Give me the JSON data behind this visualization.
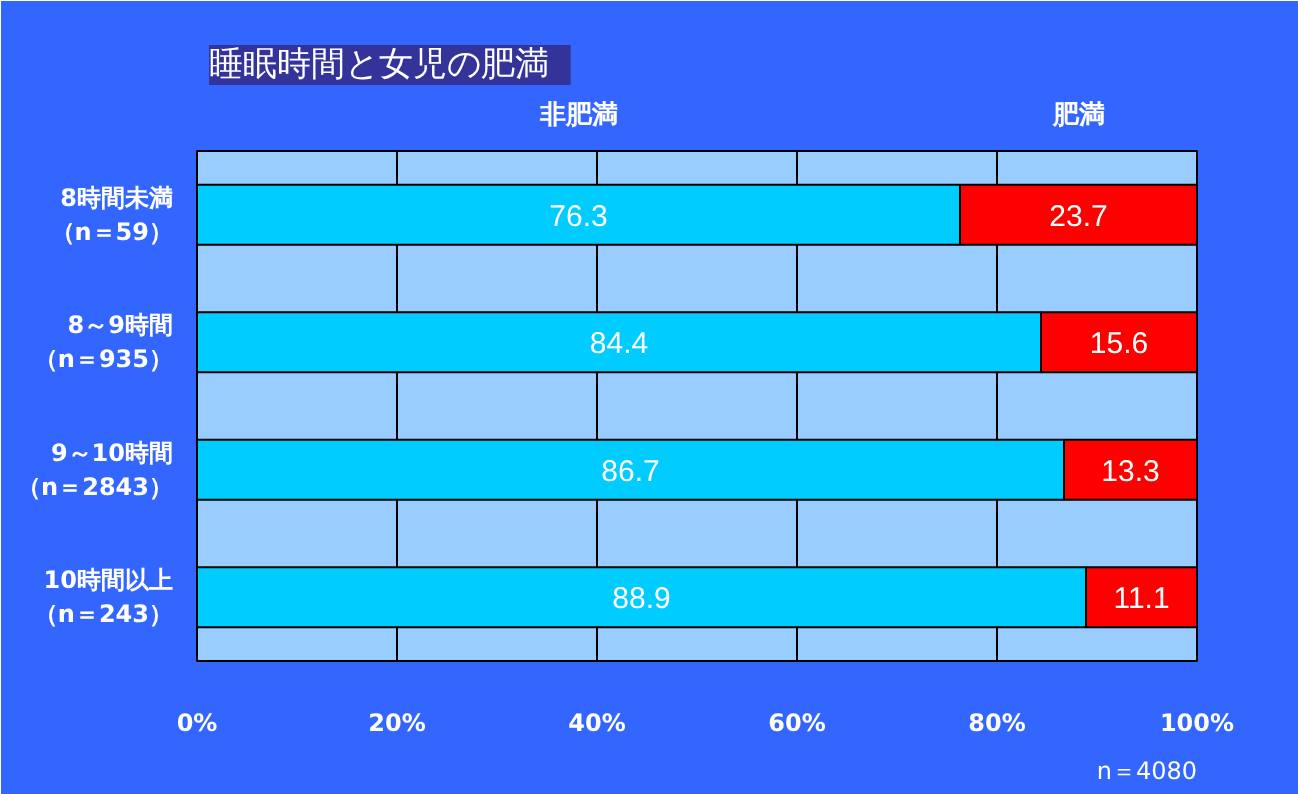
{
  "chart_data": {
    "type": "bar",
    "orientation": "horizontal",
    "stacked": true,
    "title": "睡眠時間と女児の肥満",
    "categories": [
      "8時間未満（n＝59）",
      "8～9時間（n＝935）",
      "9～10時間（n＝2843）",
      "10時間以上（n＝243）"
    ],
    "series": [
      {
        "name": "非肥満",
        "color": "#00ccff",
        "values": [
          76.3,
          84.4,
          86.7,
          88.9
        ]
      },
      {
        "name": "肥満",
        "color": "#ff0000",
        "values": [
          23.7,
          15.6,
          13.3,
          11.1
        ]
      }
    ],
    "xlim": [
      0,
      100
    ],
    "xticks": [
      {
        "value": 0,
        "label": "0%"
      },
      {
        "value": 20,
        "label": "20%"
      },
      {
        "value": 40,
        "label": "40%"
      },
      {
        "value": 60,
        "label": "60%"
      },
      {
        "value": 80,
        "label": "80%"
      },
      {
        "value": 100,
        "label": "100%"
      }
    ],
    "grid": "x",
    "data_labels": true,
    "annotations": [
      "n＝4080"
    ]
  }
}
